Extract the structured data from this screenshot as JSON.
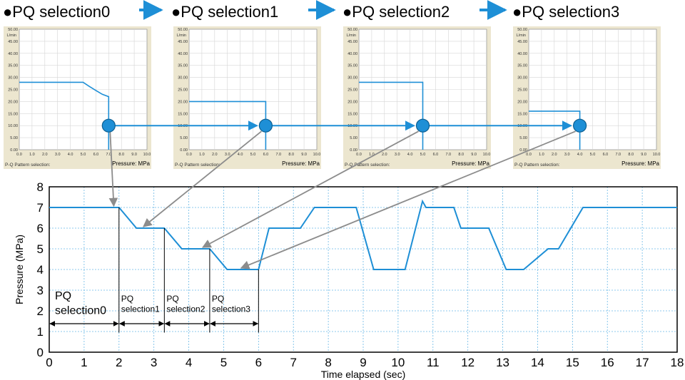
{
  "header": {
    "bullet": "●",
    "steps": [
      "PQ selection0",
      "PQ selection1",
      "PQ selection2",
      "PQ selection3"
    ]
  },
  "colors": {
    "blue": "#1e8fd6",
    "panel_bg": "#ece6cf",
    "plot_grid_dash": "#6ab8e6",
    "arrow_gray": "#8c8c8c",
    "annot": "#000000"
  },
  "panels": {
    "y_unit": "L/min",
    "y_ticks": [
      "0.00",
      "5.00",
      "10.00",
      "15.00",
      "20.00",
      "25.00",
      "30.00",
      "35.00",
      "40.00",
      "45.00",
      "50.00"
    ],
    "x_ticks": [
      "0.0",
      "1.0",
      "2.0",
      "3.0",
      "4.0",
      "5.0",
      "6.0",
      "7.0",
      "8.0",
      "9.0",
      "10.0"
    ],
    "footer_left": "P-Q Pattern selection:",
    "footer_right": "Pressure: MPa",
    "items": [
      {
        "name": "pq0",
        "cutoff_pressure": 7.0,
        "set_pressure": 7.0,
        "flow": 28.0,
        "curve": [
          [
            0,
            28
          ],
          [
            5,
            28
          ],
          [
            5.5,
            26.2
          ],
          [
            6,
            24.6
          ],
          [
            6.5,
            23
          ],
          [
            7,
            22
          ],
          [
            7,
            0
          ]
        ]
      },
      {
        "name": "pq1",
        "cutoff_pressure": 6.0,
        "set_pressure": 6.0,
        "flow": 20.0,
        "curve": [
          [
            0,
            20
          ],
          [
            6,
            20
          ],
          [
            6,
            0
          ]
        ]
      },
      {
        "name": "pq2",
        "cutoff_pressure": 5.0,
        "set_pressure": 5.0,
        "flow": 28.0,
        "curve": [
          [
            0,
            28
          ],
          [
            5,
            28
          ],
          [
            5,
            0
          ]
        ]
      },
      {
        "name": "pq3",
        "cutoff_pressure": 4.0,
        "set_pressure": 4.0,
        "flow": 16.0,
        "curve": [
          [
            0,
            16
          ],
          [
            4,
            16
          ],
          [
            4,
            0
          ]
        ]
      }
    ]
  },
  "chart_data": {
    "type": "line",
    "xlabel": "Time elapsed (sec)",
    "ylabel": "Pressure (MPa)",
    "xlim": [
      0,
      18
    ],
    "ylim": [
      0,
      8
    ],
    "x_ticks": [
      0,
      1,
      2,
      3,
      4,
      5,
      6,
      7,
      8,
      9,
      10,
      11,
      12,
      13,
      14,
      15,
      16,
      17,
      18
    ],
    "y_ticks": [
      0,
      1,
      2,
      3,
      4,
      5,
      6,
      7,
      8
    ],
    "grid": true,
    "series": [
      {
        "x": [
          0,
          2,
          2.5,
          3.3,
          3.8,
          4.6,
          5.1,
          6.0,
          6.3,
          7.2,
          7.6,
          8.8,
          9.3,
          10.2,
          10.7,
          10.8,
          10.9,
          11.6,
          11.8,
          12.6,
          13.1,
          13.6,
          14.3,
          14.6,
          15.3,
          15.6,
          18
        ],
        "y": [
          7,
          7,
          6,
          6,
          5,
          5,
          4,
          4,
          6,
          6,
          7,
          7,
          4,
          4,
          7.3,
          7,
          7,
          7,
          6,
          6,
          4,
          4,
          5,
          5,
          7,
          7,
          7
        ]
      }
    ],
    "intervals": [
      {
        "start": 0.0,
        "end": 2.0,
        "lines": [
          "PQ",
          "selection0"
        ]
      },
      {
        "start": 2.0,
        "end": 3.3,
        "lines": [
          "PQ",
          "selection1"
        ]
      },
      {
        "start": 3.3,
        "end": 4.6,
        "lines": [
          "PQ",
          "selection2"
        ]
      },
      {
        "start": 4.6,
        "end": 6.0,
        "lines": [
          "PQ",
          "selection3"
        ]
      }
    ],
    "pointer_targets": [
      {
        "panel": 0,
        "x": 1.85,
        "y": 7.0
      },
      {
        "panel": 1,
        "x": 2.7,
        "y": 6.0
      },
      {
        "panel": 2,
        "x": 4.4,
        "y": 5.0
      },
      {
        "panel": 3,
        "x": 5.5,
        "y": 4.0
      }
    ]
  }
}
